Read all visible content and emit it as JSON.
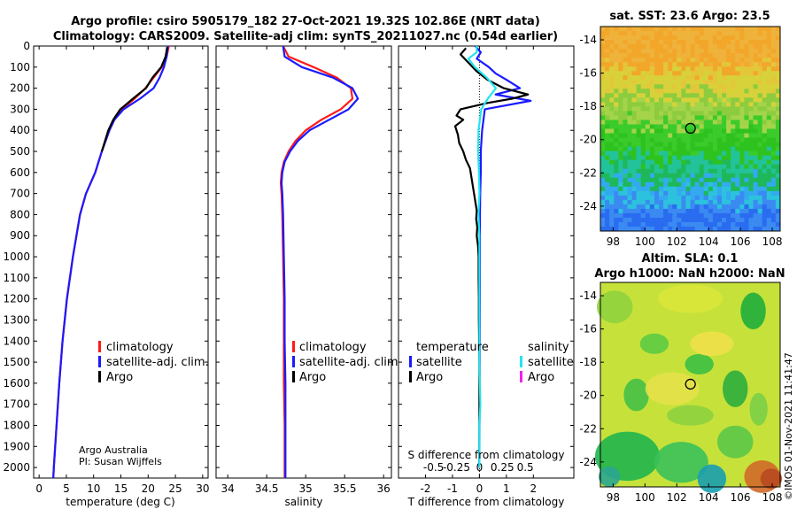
{
  "header": {
    "title_line1": "Argo profile: csiro 5905179_182 27-Oct-2021 19.32S 102.86E (NRT data)",
    "title_line2": "Climatology: CARS2009. Satellite-adj clim: synTS_20211027.nc (0.54d earlier)"
  },
  "colors": {
    "climatology": "#ff1a1a",
    "satellite_adj": "#1a1aff",
    "argo": "#000000",
    "satellite_salinity": "#22e5ee",
    "argo_salinity": "#ee22ee"
  },
  "credits": {
    "org": "Argo Australia",
    "pi": "PI: Susan Wijffels",
    "stamp": "©IMOS 01-Nov-2021 11:41:47"
  },
  "maps": {
    "sst_title": "sat. SST: 23.6 Argo: 23.5",
    "sla_title_line1": "Altim. SLA: 0.1",
    "sla_title_line2": "Argo h1000: NaN h2000: NaN",
    "lon_ticks": [
      "98",
      "100",
      "102",
      "104",
      "106",
      "108"
    ],
    "lat_ticks": [
      "-14",
      "-16",
      "-18",
      "-20",
      "-22",
      "-24"
    ],
    "marker_lon": 102.86,
    "marker_lat": -19.32,
    "lon_range": [
      97.2,
      108.5
    ],
    "lat_range": [
      -25.5,
      -13.2
    ]
  },
  "chart_data": [
    {
      "type": "line",
      "name": "temperature",
      "xlabel": "temperature (deg C)",
      "ylabel": "",
      "xlim": [
        -1,
        31
      ],
      "ylim": [
        2050,
        0
      ],
      "xticks": [
        0,
        5,
        10,
        15,
        20,
        25,
        30
      ],
      "yticks": [
        0,
        100,
        200,
        300,
        400,
        500,
        600,
        700,
        800,
        900,
        1000,
        1100,
        1200,
        1300,
        1400,
        1500,
        1600,
        1700,
        1800,
        1900,
        2000
      ],
      "legend": [
        "climatology",
        "satellite-adj. clim.",
        "Argo"
      ],
      "series": [
        {
          "name": "climatology",
          "color": "climatology",
          "depth": [
            0,
            50,
            100,
            150,
            200,
            250,
            300,
            350,
            400,
            450,
            500,
            600,
            700,
            800,
            1000,
            1200,
            1400,
            1600,
            1800,
            2000,
            2050
          ],
          "values": [
            23.8,
            23.4,
            22.5,
            21,
            19.5,
            17.5,
            15.2,
            13.8,
            12.9,
            12.2,
            11.5,
            10.3,
            8.6,
            7.5,
            6.2,
            5.1,
            4.3,
            3.7,
            3.2,
            2.7,
            2.6
          ]
        },
        {
          "name": "satellite-adj. clim.",
          "color": "satellite_adj",
          "depth": [
            0,
            50,
            100,
            150,
            200,
            250,
            300,
            350,
            400,
            450,
            500,
            600,
            700,
            800,
            1000,
            1200,
            1400,
            1600,
            1800,
            2000,
            2050
          ],
          "values": [
            23.6,
            23.4,
            22.9,
            22.1,
            21,
            18.5,
            15.5,
            13.8,
            12.9,
            12.2,
            11.5,
            10.3,
            8.6,
            7.5,
            6.2,
            5.1,
            4.3,
            3.7,
            3.2,
            2.7,
            2.6
          ]
        },
        {
          "name": "Argo",
          "color": "argo",
          "depth": [
            5,
            50,
            100,
            150,
            200,
            250,
            300,
            350,
            400,
            450,
            500
          ],
          "values": [
            23.5,
            23.2,
            22.4,
            20.8,
            19.6,
            17.2,
            14.9,
            13.6,
            12.7,
            12.1,
            11.5
          ]
        }
      ]
    },
    {
      "type": "line",
      "name": "salinity",
      "xlabel": "salinity",
      "ylabel": "",
      "xlim": [
        33.85,
        36.1
      ],
      "ylim": [
        2050,
        0
      ],
      "xticks": [
        34,
        34.5,
        35,
        35.5,
        36
      ],
      "xticklabels": [
        "34",
        "34.5",
        "35",
        "35.5",
        "36"
      ],
      "series": [
        {
          "name": "climatology",
          "color": "climatology",
          "depth": [
            0,
            50,
            100,
            150,
            200,
            250,
            300,
            350,
            400,
            450,
            500,
            550,
            600,
            650,
            700,
            800,
            1000,
            1200,
            1400,
            1600,
            1800,
            2000,
            2050
          ],
          "values": [
            34.71,
            34.78,
            35.1,
            35.4,
            35.58,
            35.6,
            35.45,
            35.2,
            35,
            34.87,
            34.78,
            34.72,
            34.69,
            34.68,
            34.69,
            34.7,
            34.71,
            34.72,
            34.72,
            34.72,
            34.73,
            34.73,
            34.73
          ]
        },
        {
          "name": "satellite-adj. clim.",
          "color": "satellite_adj",
          "depth": [
            0,
            50,
            100,
            150,
            200,
            250,
            300,
            350,
            400,
            450,
            500,
            550,
            600,
            650,
            700,
            800,
            1000,
            1200,
            1400,
            1600,
            1800,
            2000,
            2050
          ],
          "values": [
            34.71,
            34.73,
            34.95,
            35.35,
            35.6,
            35.67,
            35.55,
            35.3,
            35.05,
            34.9,
            34.8,
            34.73,
            34.7,
            34.69,
            34.7,
            34.71,
            34.72,
            34.73,
            34.73,
            34.74,
            34.74,
            34.74,
            34.74
          ]
        }
      ]
    },
    {
      "type": "line",
      "name": "differences",
      "xlabel": "T difference from climatology",
      "top_xlabel": "S difference from climatology",
      "xlim": [
        -3,
        3.5
      ],
      "ylim": [
        2050,
        0
      ],
      "xticks": [
        -2,
        -1,
        0,
        1,
        2
      ],
      "top_xticks": [
        -0.5,
        -0.25,
        0,
        0.25,
        0.5
      ],
      "top_xticklabels": [
        "-0.5",
        "-0.25",
        "0",
        "0.25",
        "0.5"
      ],
      "legend_temperature_title": "temperature",
      "legend_salinity_title": "salinity",
      "legend_temperature": [
        "satellite",
        "Argo"
      ],
      "legend_salinity": [
        "satellite",
        "Argo"
      ],
      "series": [
        {
          "name": "temperature satellite",
          "color": "satellite_adj",
          "depth": [
            0,
            30,
            60,
            100,
            130,
            160,
            200,
            230,
            260,
            300,
            350,
            400,
            500,
            600,
            700,
            800,
            1000,
            1500,
            2000
          ],
          "values": [
            -0.15,
            0.05,
            -0.1,
            0.35,
            0.6,
            1.0,
            1.5,
            0.6,
            1.9,
            0.2,
            0.15,
            0.1,
            0.05,
            0.05,
            0.03,
            0.02,
            0.02,
            0.01,
            0.0
          ]
        },
        {
          "name": "temperature Argo",
          "color": "argo",
          "depth": [
            10,
            40,
            80,
            120,
            160,
            200,
            230,
            250,
            270,
            300,
            330,
            350,
            380,
            420,
            460,
            500,
            540,
            580,
            620,
            660,
            700,
            740,
            780,
            820,
            860,
            900,
            950,
            1000,
            1100,
            1200,
            1300,
            1500,
            1700,
            1900,
            2000
          ],
          "values": [
            -0.5,
            -0.7,
            -0.4,
            -0.1,
            0.3,
            0.9,
            1.8,
            1.2,
            0.3,
            -0.7,
            -0.85,
            -0.6,
            -0.9,
            -0.8,
            -0.75,
            -0.6,
            -0.5,
            -0.35,
            -0.3,
            -0.25,
            -0.2,
            -0.15,
            -0.1,
            -0.12,
            -0.08,
            -0.1,
            -0.05,
            -0.03,
            -0.03,
            -0.02,
            -0.02,
            0.0,
            0.0,
            0.0,
            0.0
          ]
        },
        {
          "name": "salinity satellite",
          "color": "satellite_salinity",
          "depth": [
            0,
            30,
            60,
            100,
            150,
            200,
            250,
            300,
            400,
            500,
            600,
            700,
            800,
            900,
            1000,
            1200,
            1500,
            1700,
            1800,
            1900,
            2000
          ],
          "values": [
            -0.03,
            -0.03,
            -0.12,
            -0.05,
            0.08,
            0.18,
            0.09,
            0.02,
            -0.01,
            -0.015,
            -0.005,
            0.0,
            -0.01,
            0.0,
            0.0,
            0.0,
            0.0,
            0.01,
            0.0,
            0.0,
            0.0
          ]
        }
      ]
    }
  ]
}
